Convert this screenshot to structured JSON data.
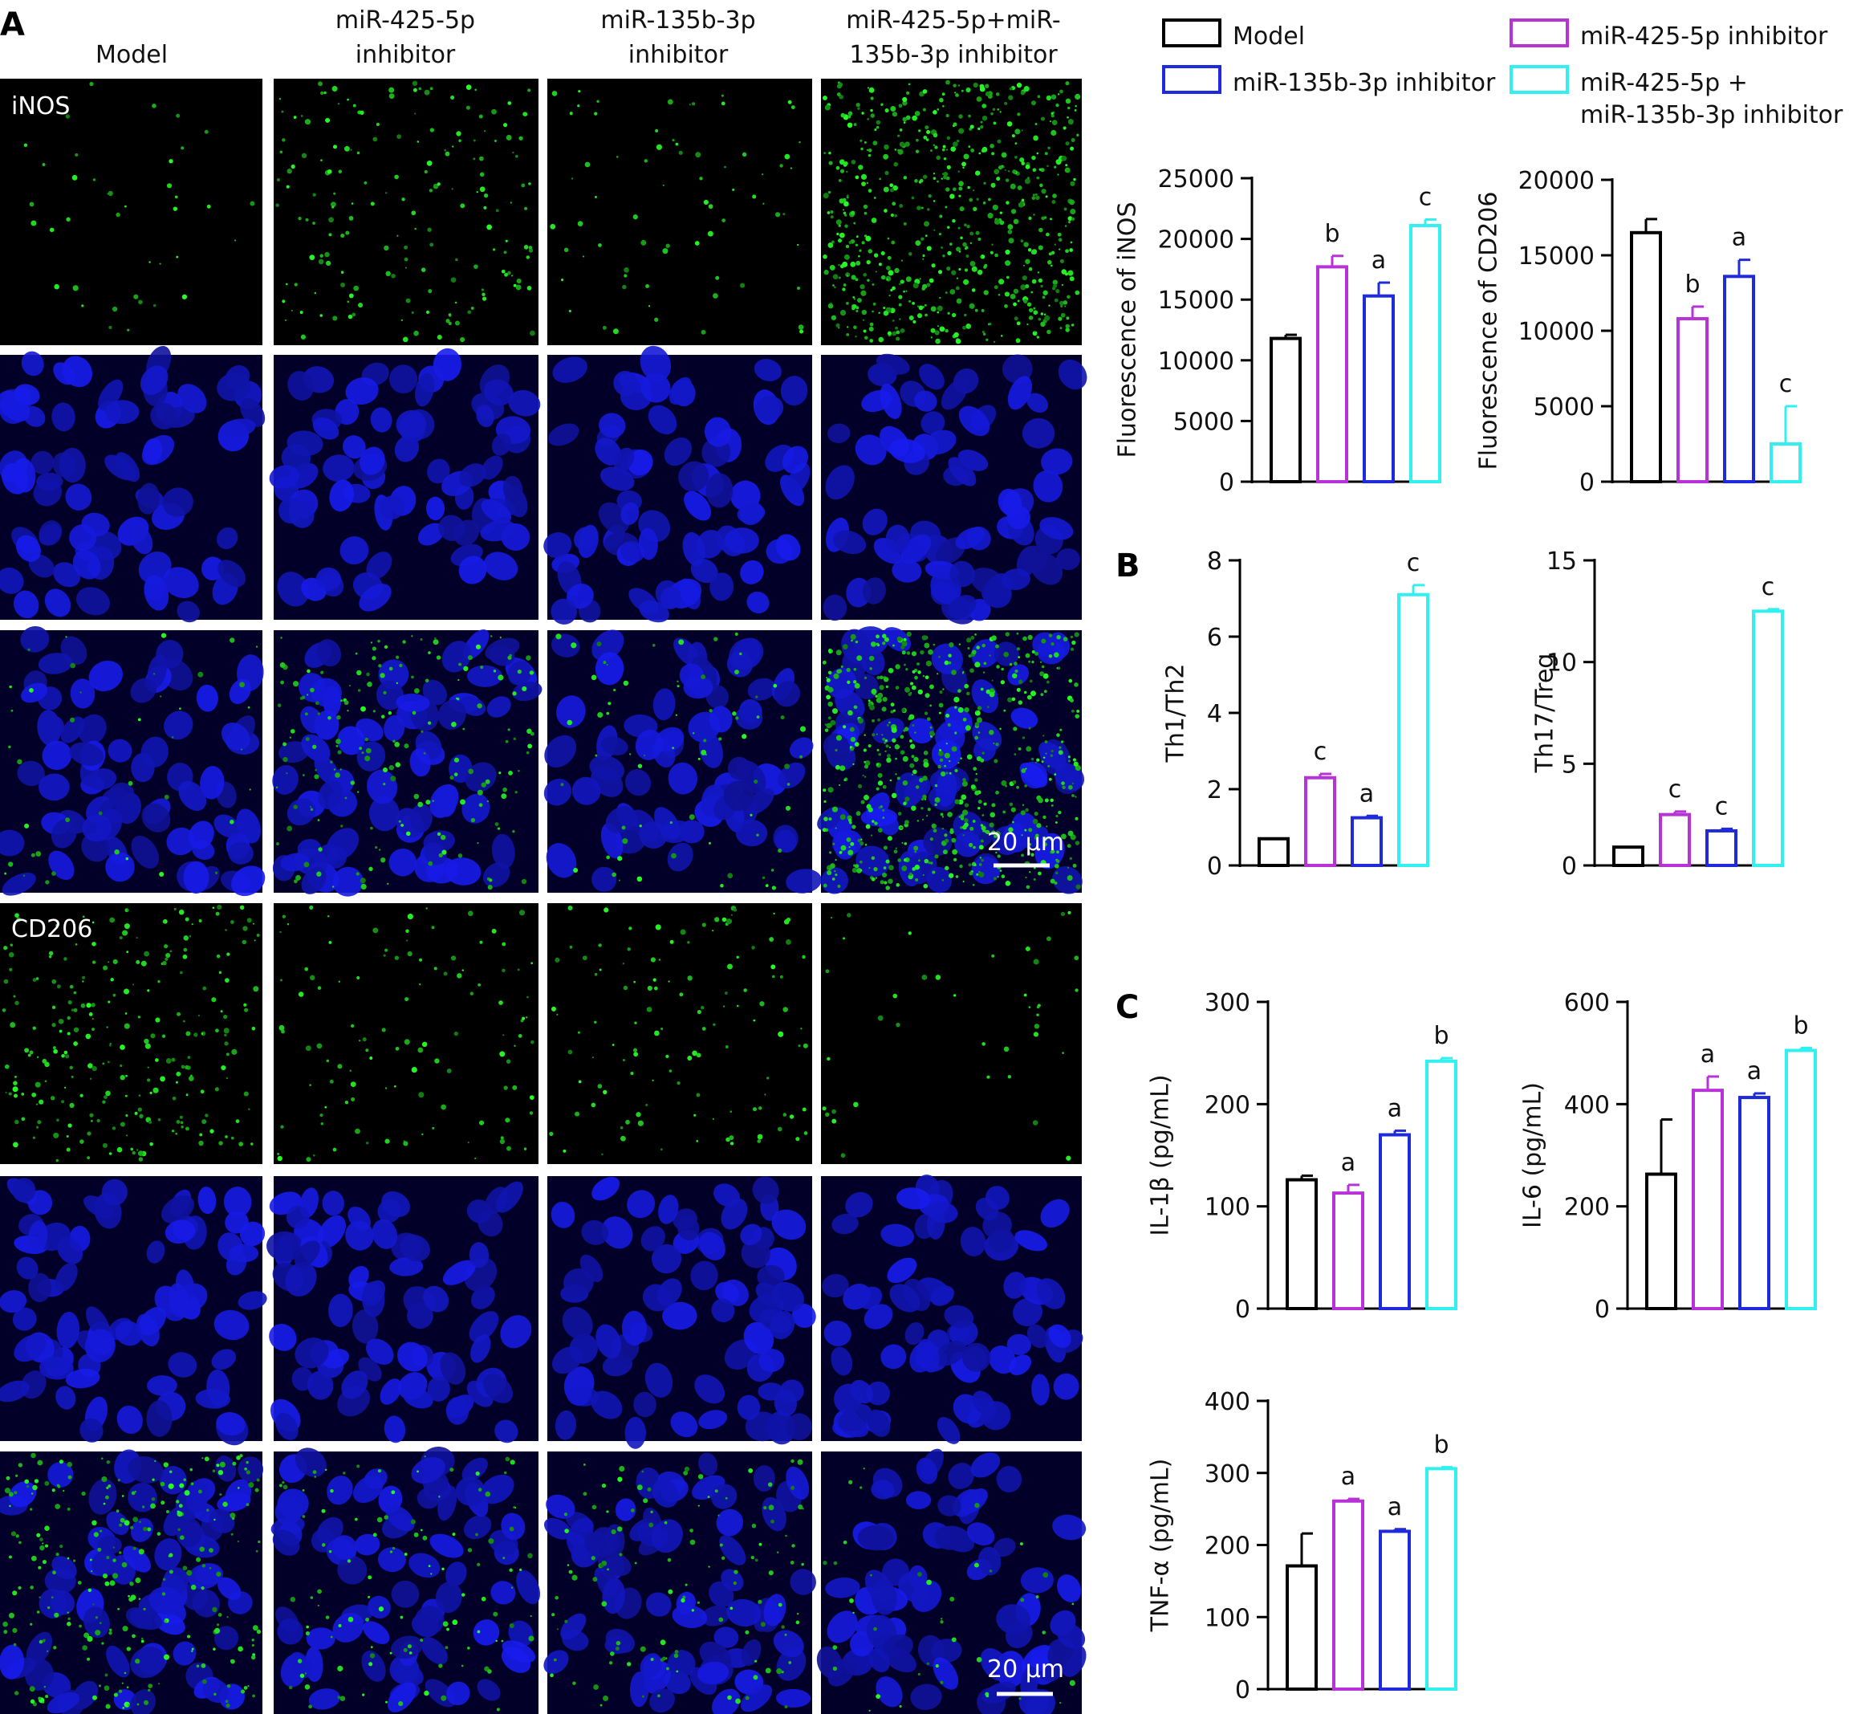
{
  "panels": {
    "A": "A",
    "B": "B",
    "C": "C"
  },
  "column_headers": [
    [
      "Model"
    ],
    [
      "miR-425-5p",
      "inhibitor"
    ],
    [
      "miR-135b-3p",
      "inhibitor"
    ],
    [
      "miR-425-5p+miR-",
      "135b-3p inhibitor"
    ]
  ],
  "row_labels": [
    "iNOS",
    "CD206"
  ],
  "scale_bar": "20 μm",
  "legend": {
    "items": [
      {
        "lines": [
          "Model"
        ],
        "color": "#000000"
      },
      {
        "lines": [
          "miR-425-5p inhibitor"
        ],
        "color": "#B833D6"
      },
      {
        "lines": [
          "miR-135b-3p inhibitor"
        ],
        "color": "#1F2BDB"
      },
      {
        "lines": [
          "miR-425-5p  +",
          "miR-135b-3p inhibitor"
        ],
        "color": "#33F0F0"
      }
    ]
  },
  "significance_letters": [
    "a",
    "b",
    "c"
  ],
  "chart_data": [
    {
      "type": "bar",
      "panel": "A",
      "ylabel": "Fluorescence of iNOS",
      "ylim": [
        0,
        25000
      ],
      "yticks": [
        0,
        5000,
        10000,
        15000,
        20000,
        25000
      ],
      "values": [
        11800,
        17700,
        15300,
        21100
      ],
      "errors": [
        300,
        900,
        1100,
        500
      ],
      "letters": [
        "",
        "b",
        "a",
        "c"
      ]
    },
    {
      "type": "bar",
      "panel": "A",
      "ylabel": "Fluorescence of CD206",
      "ylim": [
        0,
        20000
      ],
      "yticks": [
        0,
        5000,
        10000,
        15000,
        20000
      ],
      "values": [
        16500,
        10800,
        13600,
        2500
      ],
      "errors": [
        900,
        800,
        1100,
        2500
      ],
      "letters": [
        "",
        "b",
        "a",
        "c"
      ]
    },
    {
      "type": "bar",
      "panel": "B",
      "ylabel": "Th1/Th2",
      "ylim": [
        0,
        8
      ],
      "yticks": [
        0,
        2,
        4,
        6,
        8
      ],
      "values": [
        0.7,
        2.3,
        1.25,
        7.1
      ],
      "errors": [
        0,
        0.1,
        0.05,
        0.25
      ],
      "letters": [
        "",
        "c",
        "a",
        "c"
      ]
    },
    {
      "type": "bar",
      "panel": "B",
      "ylabel": "Th17/Treg",
      "ylim": [
        0,
        15
      ],
      "yticks": [
        0,
        5,
        10,
        15
      ],
      "values": [
        0.9,
        2.5,
        1.7,
        12.5
      ],
      "errors": [
        0,
        0.15,
        0.1,
        0.1
      ],
      "letters": [
        "",
        "c",
        "c",
        "c"
      ]
    },
    {
      "type": "bar",
      "panel": "C",
      "ylabel": "IL-1β (pg/mL)",
      "ylim": [
        0,
        300
      ],
      "yticks": [
        0,
        100,
        200,
        300
      ],
      "values": [
        126,
        113,
        170,
        242
      ],
      "errors": [
        4,
        8,
        4,
        3
      ],
      "letters": [
        "",
        "a",
        "a",
        "b"
      ]
    },
    {
      "type": "bar",
      "panel": "C",
      "ylabel": "IL-6 (pg/mL)",
      "ylim": [
        0,
        600
      ],
      "yticks": [
        0,
        200,
        400,
        600
      ],
      "values": [
        263,
        427,
        413,
        505
      ],
      "errors": [
        107,
        27,
        8,
        5
      ],
      "letters": [
        "",
        "a",
        "a",
        "b"
      ]
    },
    {
      "type": "bar",
      "panel": "C",
      "ylabel": "TNF-α (pg/mL)",
      "ylim": [
        0,
        400
      ],
      "yticks": [
        0,
        100,
        200,
        300,
        400
      ],
      "values": [
        171,
        261,
        219,
        306
      ],
      "errors": [
        45,
        3,
        3,
        2
      ],
      "letters": [
        "",
        "a",
        "a",
        "b"
      ]
    }
  ]
}
